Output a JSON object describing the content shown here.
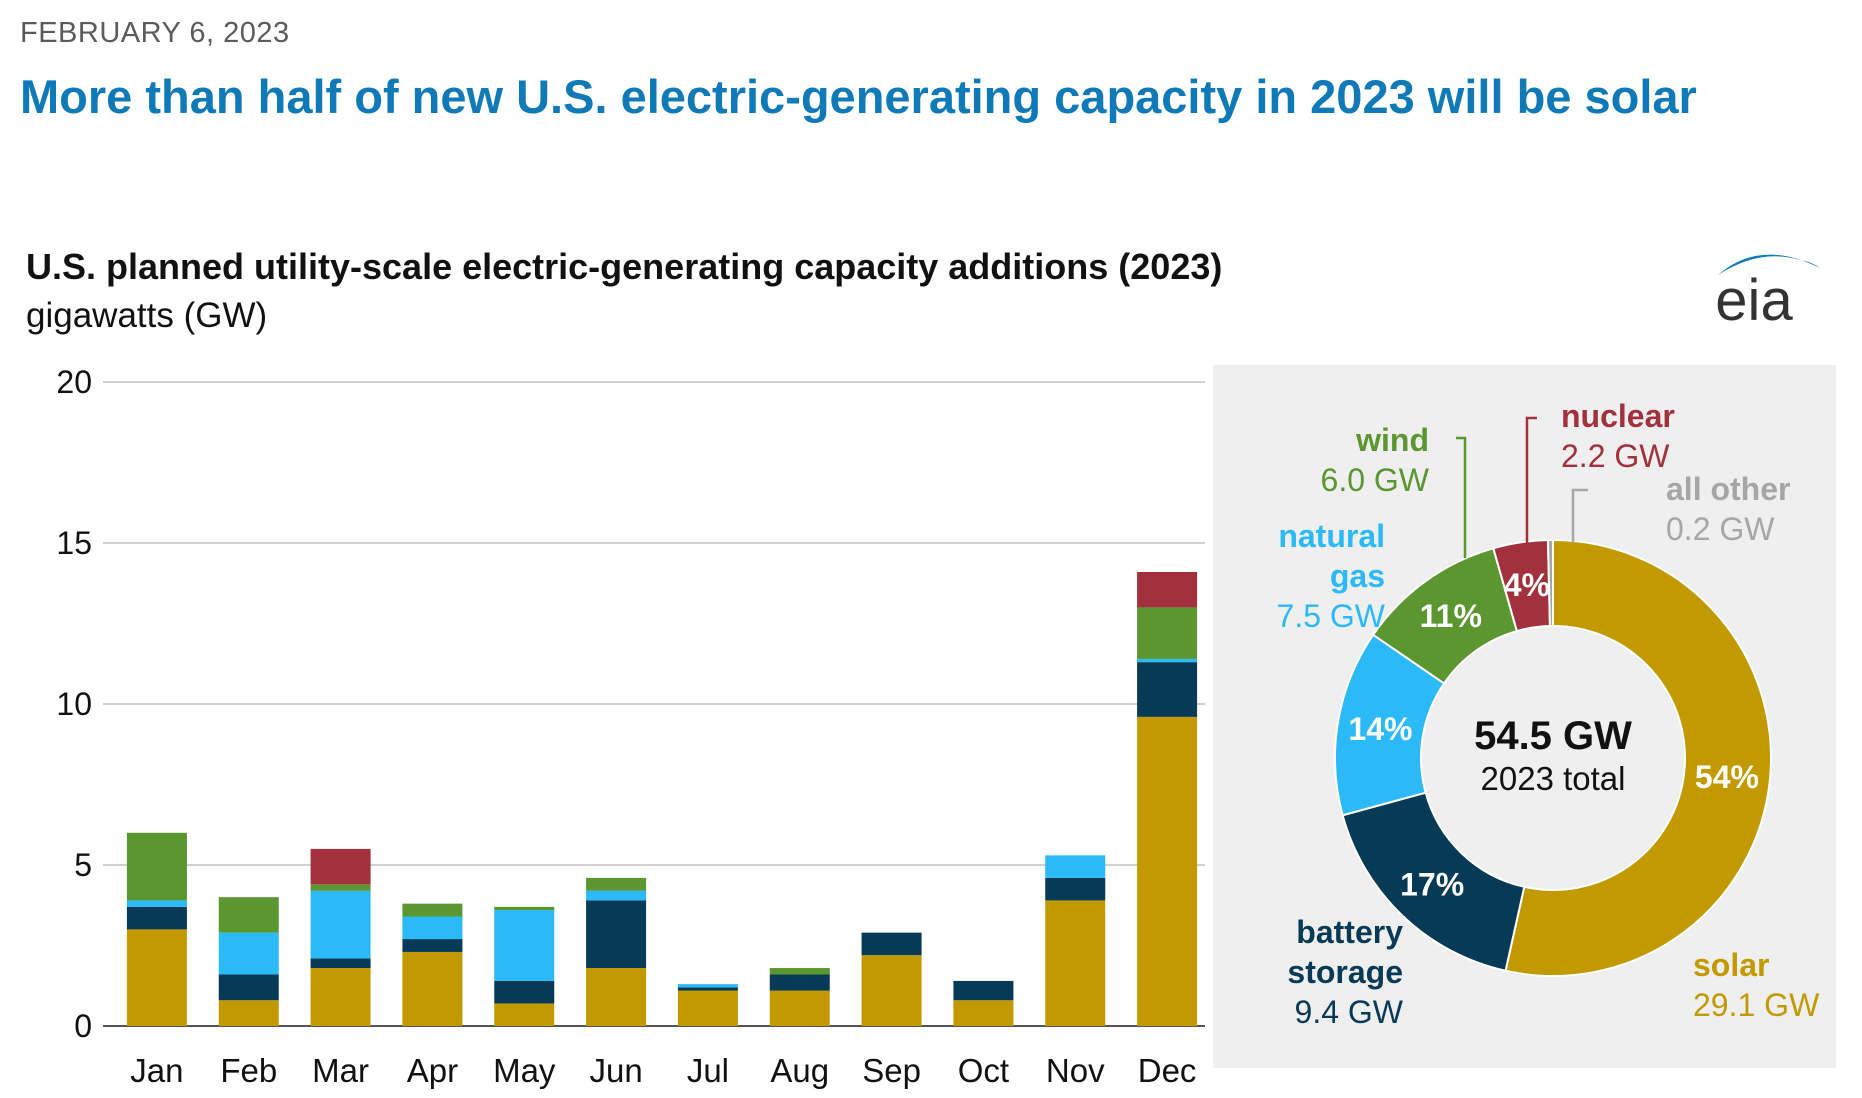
{
  "header": {
    "date": "FEBRUARY 6, 2023",
    "headline": "More than half of new U.S. electric-generating capacity in 2023 will be solar",
    "logo_text": "eia"
  },
  "colors": {
    "solar": "#c29a00",
    "battery_storage": "#073a56",
    "natural_gas": "#2bbaf7",
    "wind": "#5b9630",
    "nuclear": "#a3303d",
    "all_other": "#a6a6a6",
    "headline": "#0f7ab7"
  },
  "chart_data": [
    {
      "type": "bar",
      "stacked": true,
      "title": "U.S. planned utility-scale electric-generating capacity additions (2023)",
      "ylabel": "gigawatts (GW)",
      "ylim": [
        0,
        20
      ],
      "yticks": [
        "0",
        "5",
        "10",
        "15",
        "20"
      ],
      "ytick_values": [
        0,
        5,
        10,
        15,
        20
      ],
      "grid": true,
      "categories": [
        "Jan",
        "Feb",
        "Mar",
        "Apr",
        "May",
        "Jun",
        "Jul",
        "Aug",
        "Sep",
        "Oct",
        "Nov",
        "Dec"
      ],
      "series": [
        {
          "key": "solar",
          "values": [
            3.0,
            0.8,
            1.8,
            2.3,
            0.7,
            1.8,
            1.1,
            1.1,
            2.2,
            0.8,
            3.9,
            9.6
          ]
        },
        {
          "key": "battery_storage",
          "values": [
            0.7,
            0.8,
            0.3,
            0.4,
            0.7,
            2.1,
            0.1,
            0.5,
            0.7,
            0.6,
            0.7,
            1.7
          ]
        },
        {
          "key": "natural_gas",
          "values": [
            0.2,
            1.3,
            2.1,
            0.7,
            2.2,
            0.3,
            0.1,
            0.0,
            0.0,
            0.0,
            0.7,
            0.1
          ]
        },
        {
          "key": "wind",
          "values": [
            2.1,
            1.1,
            0.2,
            0.4,
            0.1,
            0.4,
            0.0,
            0.2,
            0.0,
            0.0,
            0.0,
            1.6
          ]
        },
        {
          "key": "nuclear",
          "values": [
            0.0,
            0.0,
            1.1,
            0.0,
            0.0,
            0.0,
            0.0,
            0.0,
            0.0,
            0.0,
            0.0,
            1.1
          ]
        }
      ]
    },
    {
      "type": "pie",
      "donut": true,
      "total_value": "54.5 GW",
      "total_caption": "2023 total",
      "slices": [
        {
          "key": "solar",
          "name": "solar",
          "value": 29.1,
          "value_label": "29.1 GW",
          "percent": "54%"
        },
        {
          "key": "battery_storage",
          "name": "battery storage",
          "name_lines": [
            "battery",
            "storage"
          ],
          "value": 9.4,
          "value_label": "9.4 GW",
          "percent": "17%"
        },
        {
          "key": "natural_gas",
          "name": "natural gas",
          "name_lines": [
            "natural",
            "gas"
          ],
          "value": 7.5,
          "value_label": "7.5 GW",
          "percent": "14%"
        },
        {
          "key": "wind",
          "name": "wind",
          "value": 6.0,
          "value_label": "6.0 GW",
          "percent": "11%"
        },
        {
          "key": "nuclear",
          "name": "nuclear",
          "value": 2.2,
          "value_label": "2.2 GW",
          "percent": "4%"
        },
        {
          "key": "all_other",
          "name": "all other",
          "value": 0.2,
          "value_label": "0.2 GW",
          "percent": ""
        }
      ]
    }
  ]
}
